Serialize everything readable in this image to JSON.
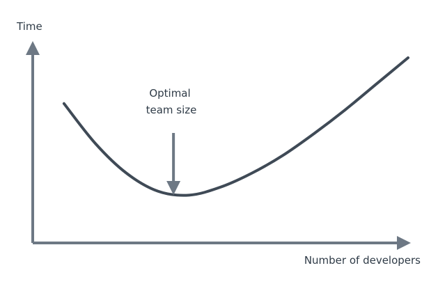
{
  "chart_data": {
    "type": "line",
    "ylabel": "Time",
    "xlabel": "Number of developers",
    "grid": false,
    "legend": "none",
    "series": [
      {
        "x": [
          1,
          2,
          3,
          4,
          5,
          6,
          7,
          8,
          9,
          10,
          11,
          12
        ],
        "values": [
          7.0,
          5.0,
          3.5,
          2.6,
          2.4,
          2.8,
          3.5,
          4.4,
          5.5,
          6.7,
          8.0,
          9.3
        ]
      }
    ],
    "annotation": {
      "lines": [
        "Optimal",
        "team size"
      ],
      "x": 4.5
    },
    "colors": {
      "line": "#3f4a56",
      "axis": "#6d7884",
      "arrow": "#6d7884",
      "text": "#2f3b47"
    }
  }
}
